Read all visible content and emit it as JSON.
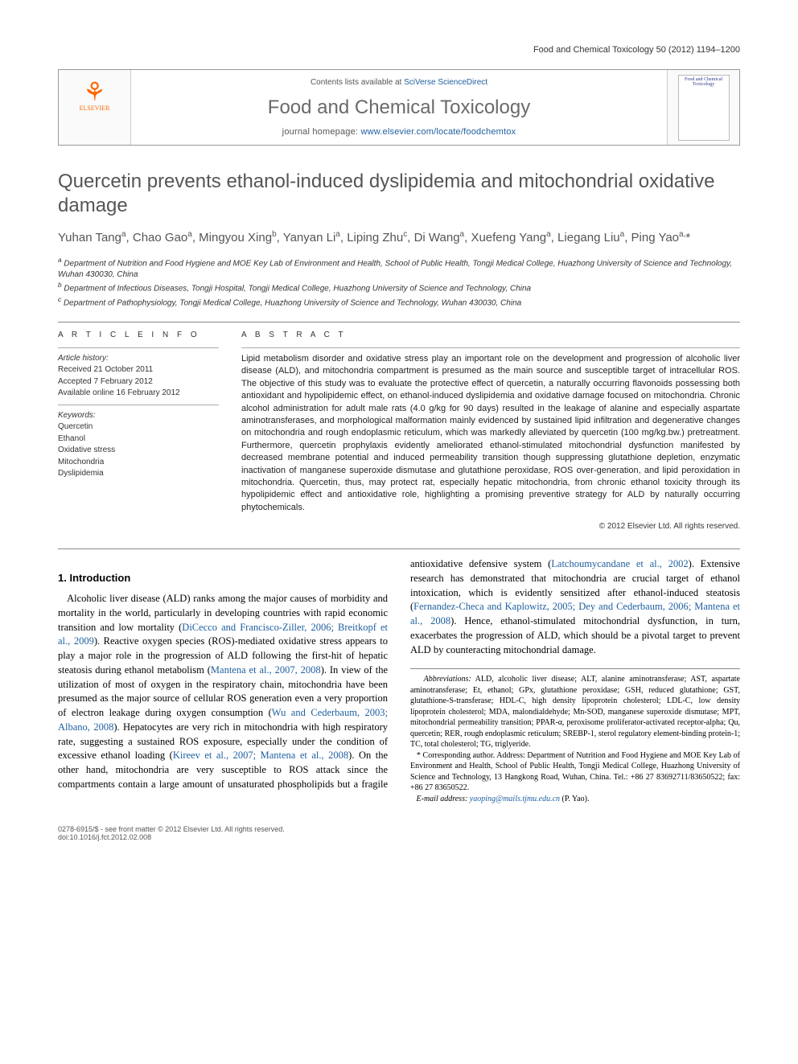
{
  "running_head": "Food and Chemical Toxicology 50 (2012) 1194–1200",
  "masthead": {
    "contents_prefix": "Contents lists available at ",
    "contents_link": "SciVerse ScienceDirect",
    "journal_name": "Food and Chemical Toxicology",
    "homepage_prefix": "journal homepage: ",
    "homepage_link": "www.elsevier.com/locate/foodchemtox",
    "publisher": "ELSEVIER",
    "cover_text": "Food and Chemical Toxicology"
  },
  "article": {
    "title": "Quercetin prevents ethanol-induced dyslipidemia and mitochondrial oxidative damage",
    "authors_html": "Yuhan Tang<sup>a</sup>, Chao Gao<sup>a</sup>, Mingyou Xing<sup>b</sup>, Yanyan Li<sup>a</sup>, Liping Zhu<sup>c</sup>, Di Wang<sup>a</sup>, Xuefeng Yang<sup>a</sup>, Liegang Liu<sup>a</sup>, Ping Yao<sup>a,</sup>*",
    "affiliations": {
      "a": "Department of Nutrition and Food Hygiene and MOE Key Lab of Environment and Health, School of Public Health, Tongji Medical College, Huazhong University of Science and Technology, Wuhan 430030, China",
      "b": "Department of Infectious Diseases, Tongji Hospital, Tongji Medical College, Huazhong University of Science and Technology, China",
      "c": "Department of Pathophysiology, Tongji Medical College, Huazhong University of Science and Technology, Wuhan 430030, China"
    }
  },
  "info": {
    "heading": "A R T I C L E   I N F O",
    "history_label": "Article history:",
    "received": "Received 21 October 2011",
    "accepted": "Accepted 7 February 2012",
    "online": "Available online 16 February 2012",
    "keywords_label": "Keywords:",
    "keywords": [
      "Quercetin",
      "Ethanol",
      "Oxidative stress",
      "Mitochondria",
      "Dyslipidemia"
    ]
  },
  "abstract": {
    "heading": "A B S T R A C T",
    "text": "Lipid metabolism disorder and oxidative stress play an important role on the development and progression of alcoholic liver disease (ALD), and mitochondria compartment is presumed as the main source and susceptible target of intracellular ROS. The objective of this study was to evaluate the protective effect of quercetin, a naturally occurring flavonoids possessing both antioxidant and hypolipidemic effect, on ethanol-induced dyslipidemia and oxidative damage focused on mitochondria. Chronic alcohol administration for adult male rats (4.0 g/kg for 90 days) resulted in the leakage of alanine and especially aspartate aminotransferases, and morphological malformation mainly evidenced by sustained lipid infiltration and degenerative changes on mitochondria and rough endoplasmic reticulum, which was markedly alleviated by quercetin (100 mg/kg.bw.) pretreatment. Furthermore, quercetin prophylaxis evidently ameliorated ethanol-stimulated mitochondrial dysfunction manifested by decreased membrane potential and induced permeability transition though suppressing glutathione depletion, enzymatic inactivation of manganese superoxide dismutase and glutathione peroxidase, ROS over-generation, and lipid peroxidation in mitochondria. Quercetin, thus, may protect rat, especially hepatic mitochondria, from chronic ethanol toxicity through its hypolipidemic effect and antioxidative role, highlighting a promising preventive strategy for ALD by naturally occurring phytochemicals.",
    "copyright": "© 2012 Elsevier Ltd. All rights reserved."
  },
  "introduction": {
    "heading": "1. Introduction",
    "para1_pre": "Alcoholic liver disease (ALD) ranks among the major causes of morbidity and mortality in the world, particularly in developing countries with rapid economic transition and low mortality (",
    "para1_cite1": "DiCecco and Francisco-Ziller, 2006; Breitkopf et al., 2009",
    "para1_post1": "). Reactive oxygen species (ROS)-mediated oxidative stress appears to ",
    "para2_pre": "play a major role in the progression of ALD following the first-hit of hepatic steatosis during ethanol metabolism (",
    "para2_cite1": "Mantena et al., 2007, 2008",
    "para2_mid1": "). In view of the utilization of most of oxygen in the respiratory chain, mitochondria have been presumed as the major source of cellular ROS generation even a very proportion of electron leakage during oxygen consumption (",
    "para2_cite2": "Wu and Cederbaum, 2003; Albano, 2008",
    "para2_mid2": "). Hepatocytes are very rich in mitochondria with high respiratory rate, suggesting a sustained ROS exposure, especially under the condition of excessive ethanol loading (",
    "para2_cite3": "Kireev et al., 2007; Mantena et al., 2008",
    "para2_mid3": "). On the other hand, mitochondria are very susceptible to ROS attack since the compartments contain a large amount of unsaturated phospholipids but a fragile antioxidative defensive system (",
    "para2_cite4": "Latchoumycandane et al., 2002",
    "para2_mid4": "). Extensive research has demonstrated that mitochondria are crucial target of ethanol intoxication, which is evidently sensitized after ethanol-induced steatosis (",
    "para2_cite5": "Fernandez-Checa and Kaplowitz, 2005; Dey and Cederbaum, 2006; Mantena et al., 2008",
    "para2_end": "). Hence, ethanol-stimulated mitochondrial dysfunction, in turn, exacerbates the progression of ALD, which should be a pivotal target to prevent ALD by counteracting mitochondrial damage."
  },
  "footnotes": {
    "abbr_label": "Abbreviations:",
    "abbr_text": " ALD, alcoholic liver disease; ALT, alanine aminotransferase; AST, aspartate aminotransferase; Et, ethanol; GPx, glutathione peroxidase; GSH, reduced glutathione; GST, glutathione-S-transferase; HDL-C, high density lipoprotein cholesterol; LDL-C, low density lipoprotein cholesterol; MDA, malondialdehyde; Mn-SOD, manganese superoxide dismutase; MPT, mitochondrial permeability transition; PPAR-α, peroxisome proliferator-activated receptor-alpha; Qu, quercetin; RER, rough endoplasmic reticulum; SREBP-1, sterol regulatory element-binding protein-1; TC, total cholesterol; TG, triglyeride.",
    "corr_label": "* Corresponding author. Address: ",
    "corr_text": "Department of Nutrition and Food Hygiene and MOE Key Lab of Environment and Health, School of Public Health, Tongji Medical College, Huazhong University of Science and Technology, 13 Hangkong Road, Wuhan, China. Tel.: +86 27 83692711/83650522; fax: +86 27 83650522.",
    "email_label": "E-mail address: ",
    "email": "yaoping@mails.tjmu.edu.cn",
    "email_person": " (P. Yao)."
  },
  "footer": {
    "line1": "0278-6915/$ - see front matter © 2012 Elsevier Ltd. All rights reserved.",
    "line2": "doi:10.1016/j.fct.2012.02.008"
  },
  "colors": {
    "link": "#2060a0",
    "gray_text": "#555555",
    "rule": "#888888"
  }
}
